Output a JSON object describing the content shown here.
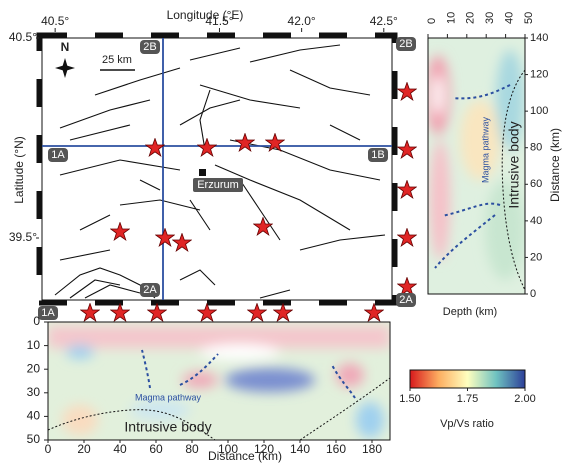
{
  "map": {
    "x_label": "Longitude (°E)",
    "y_label": "Latitude (°N)",
    "xlim": [
      40.42,
      42.55
    ],
    "ylim": [
      39.19,
      40.5
    ],
    "xticks": [
      {
        "value": 40.5,
        "label": "40.5°"
      },
      {
        "value": 41.5,
        "label": "41.5°"
      },
      {
        "value": 42.0,
        "label": "42.0°"
      },
      {
        "value": 42.5,
        "label": "42.5°"
      }
    ],
    "yticks": [
      {
        "value": 40.5,
        "label": "40.5°"
      },
      {
        "value": 39.5,
        "label": "39.5°"
      }
    ],
    "north": "N",
    "scale_bar": "25 km",
    "city": "Erzurum",
    "profile_labels": [
      "1A",
      "1B",
      "2A",
      "2B"
    ]
  },
  "depth_section": {
    "x_label": "Depth (km)",
    "y_label": "Distance (km)",
    "xlim": [
      0,
      50
    ],
    "ylim": [
      0,
      140
    ],
    "xticks": [
      0,
      10,
      20,
      30,
      40,
      50
    ],
    "yticks": [
      0,
      20,
      40,
      60,
      80,
      100,
      120,
      140
    ],
    "annotations": [
      "Magma pathway",
      "Intrusive  body"
    ],
    "profile_labels": [
      "2B",
      "2A"
    ]
  },
  "distance_section": {
    "x_label": "Distance (km)",
    "xlim": [
      0,
      190
    ],
    "ylim": [
      0,
      50
    ],
    "xticks": [
      0,
      20,
      40,
      60,
      80,
      100,
      120,
      140,
      160,
      180
    ],
    "yticks": [
      0,
      10,
      20,
      30,
      40,
      50
    ],
    "annotations": [
      "Magma pathway",
      "Intrusive  body"
    ],
    "profile_labels": [
      "1A"
    ]
  },
  "colorbar": {
    "label": "Vp/Vs ratio",
    "lim": [
      1.5,
      2.0
    ],
    "ticks": [
      {
        "value": 1.5,
        "label": "1.50"
      },
      {
        "value": 1.75,
        "label": "1.75"
      },
      {
        "value": 2.0,
        "label": "2.00"
      }
    ]
  }
}
